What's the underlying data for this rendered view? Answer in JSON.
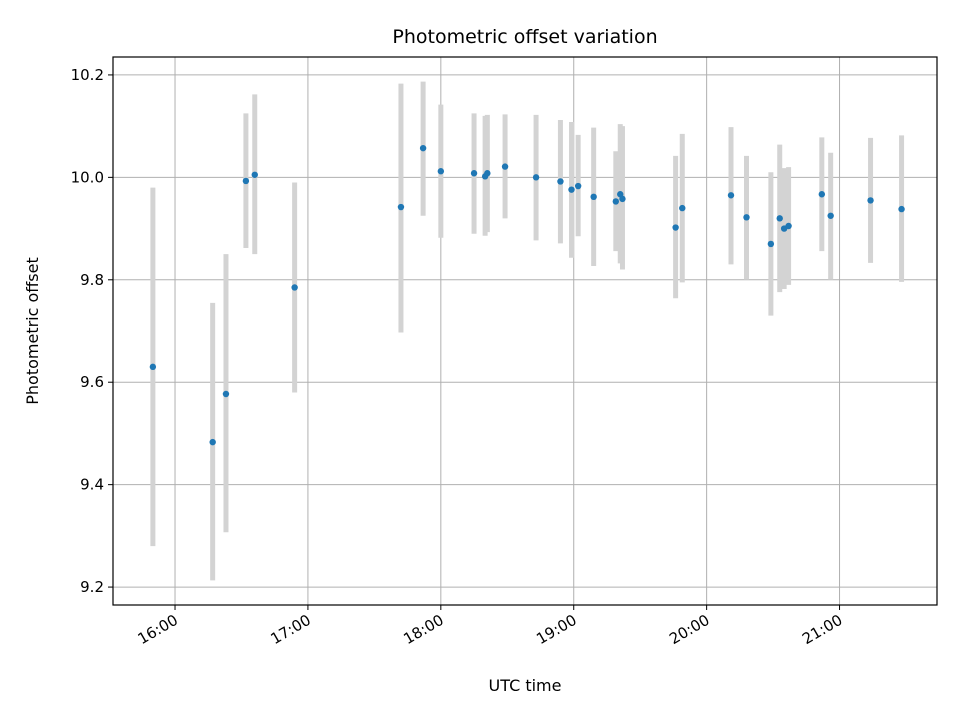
{
  "chart_data": {
    "type": "scatter",
    "title": "Photometric offset variation",
    "xlabel": "UTC time",
    "ylabel": "Photometric offset",
    "x_ticks": [
      "16:00",
      "17:00",
      "18:00",
      "19:00",
      "20:00",
      "21:00"
    ],
    "y_ticks": [
      "9.2",
      "9.4",
      "9.6",
      "9.8",
      "10.0",
      "10.2"
    ],
    "xlim": [
      "15:32",
      "21:44"
    ],
    "ylim": [
      9.165,
      10.235
    ],
    "grid": true,
    "colors": {
      "points": "#1f77b4",
      "error_bars": "#d3d3d3",
      "grid": "#b0b0b0"
    },
    "points": [
      {
        "time": "15:50",
        "y": 9.63,
        "y_low": 9.28,
        "y_high": 9.98
      },
      {
        "time": "16:17",
        "y": 9.483,
        "y_low": 9.213,
        "y_high": 9.755
      },
      {
        "time": "16:23",
        "y": 9.577,
        "y_low": 9.307,
        "y_high": 9.85
      },
      {
        "time": "16:32",
        "y": 9.993,
        "y_low": 9.862,
        "y_high": 10.125
      },
      {
        "time": "16:36",
        "y": 10.005,
        "y_low": 9.85,
        "y_high": 10.162
      },
      {
        "time": "16:54",
        "y": 9.785,
        "y_low": 9.58,
        "y_high": 9.99
      },
      {
        "time": "17:42",
        "y": 9.942,
        "y_low": 9.697,
        "y_high": 10.183
      },
      {
        "time": "17:52",
        "y": 10.057,
        "y_low": 9.925,
        "y_high": 10.187
      },
      {
        "time": "18:00",
        "y": 10.012,
        "y_low": 9.882,
        "y_high": 10.142
      },
      {
        "time": "18:15",
        "y": 10.008,
        "y_low": 9.89,
        "y_high": 10.125
      },
      {
        "time": "18:20",
        "y": 10.002,
        "y_low": 9.886,
        "y_high": 10.12
      },
      {
        "time": "18:21",
        "y": 10.008,
        "y_low": 9.893,
        "y_high": 10.122
      },
      {
        "time": "18:29",
        "y": 10.021,
        "y_low": 9.92,
        "y_high": 10.123
      },
      {
        "time": "18:43",
        "y": 10.0,
        "y_low": 9.877,
        "y_high": 10.122
      },
      {
        "time": "18:54",
        "y": 9.992,
        "y_low": 9.871,
        "y_high": 10.112
      },
      {
        "time": "18:59",
        "y": 9.976,
        "y_low": 9.843,
        "y_high": 10.108
      },
      {
        "time": "19:02",
        "y": 9.983,
        "y_low": 9.885,
        "y_high": 10.083
      },
      {
        "time": "19:09",
        "y": 9.962,
        "y_low": 9.827,
        "y_high": 10.097
      },
      {
        "time": "19:19",
        "y": 9.953,
        "y_low": 9.856,
        "y_high": 10.051
      },
      {
        "time": "19:21",
        "y": 9.967,
        "y_low": 9.832,
        "y_high": 10.104
      },
      {
        "time": "19:22",
        "y": 9.958,
        "y_low": 9.82,
        "y_high": 10.1
      },
      {
        "time": "19:46",
        "y": 9.902,
        "y_low": 9.764,
        "y_high": 10.042
      },
      {
        "time": "19:49",
        "y": 9.94,
        "y_low": 9.795,
        "y_high": 10.085
      },
      {
        "time": "20:11",
        "y": 9.965,
        "y_low": 9.83,
        "y_high": 10.098
      },
      {
        "time": "20:18",
        "y": 9.922,
        "y_low": 9.8,
        "y_high": 10.042
      },
      {
        "time": "20:29",
        "y": 9.87,
        "y_low": 9.73,
        "y_high": 10.01
      },
      {
        "time": "20:33",
        "y": 9.92,
        "y_low": 9.776,
        "y_high": 10.064
      },
      {
        "time": "20:35",
        "y": 9.9,
        "y_low": 9.782,
        "y_high": 10.018
      },
      {
        "time": "20:37",
        "y": 9.905,
        "y_low": 9.79,
        "y_high": 10.02
      },
      {
        "time": "20:52",
        "y": 9.967,
        "y_low": 9.856,
        "y_high": 10.078
      },
      {
        "time": "20:56",
        "y": 9.925,
        "y_low": 9.8,
        "y_high": 10.048
      },
      {
        "time": "21:14",
        "y": 9.955,
        "y_low": 9.833,
        "y_high": 10.077
      },
      {
        "time": "21:28",
        "y": 9.938,
        "y_low": 9.796,
        "y_high": 10.082
      }
    ]
  }
}
